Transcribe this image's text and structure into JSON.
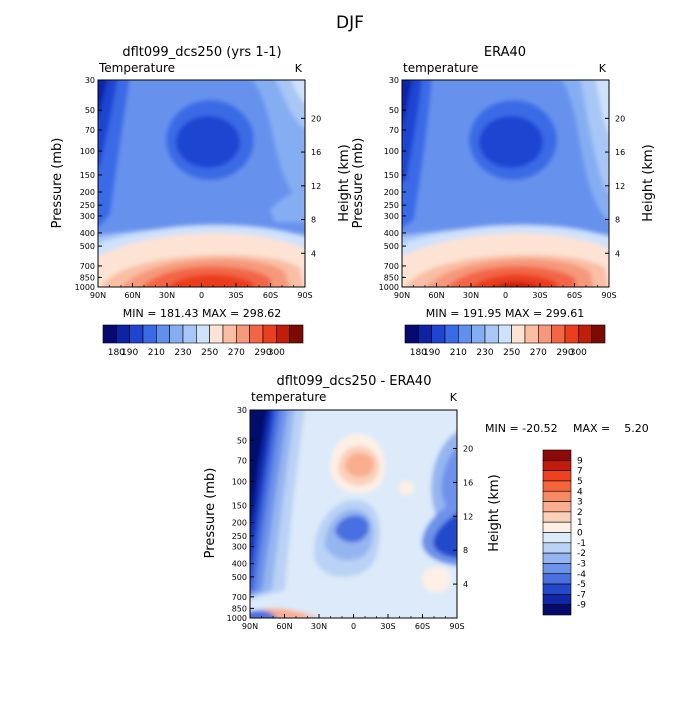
{
  "chart_data": [
    {
      "type": "heatmap",
      "title": "dflt099_dcs250 (yrs 1-1)",
      "field_label": "Temperature",
      "unit": "K",
      "xlabel": "",
      "ylabel": "Pressure (mb)",
      "right_label": "Height (km)",
      "xticks": [
        "90N",
        "60N",
        "30N",
        "0",
        "30S",
        "60S",
        "90S"
      ],
      "yticks": [
        "30",
        "50",
        "70",
        "100",
        "150",
        "200",
        "250",
        "300",
        "400",
        "500",
        "700",
        "850",
        "1000"
      ],
      "right_ticks": [
        "20",
        "16",
        "12",
        "8",
        "4"
      ],
      "stats": "MIN = 181.43   MAX = 298.62",
      "levels": [
        180,
        190,
        200,
        210,
        220,
        230,
        240,
        250,
        260,
        270,
        280,
        290,
        300
      ],
      "level_labels": [
        "180",
        "190",
        "210",
        "230",
        "250",
        "270",
        "290",
        "300"
      ]
    },
    {
      "type": "heatmap",
      "title": "ERA40",
      "field_label": "temperature",
      "unit": "K",
      "xlabel": "",
      "ylabel": "Pressure (mb)",
      "right_label": "Height (km)",
      "xticks": [
        "90N",
        "60N",
        "30N",
        "0",
        "30S",
        "60S",
        "90S"
      ],
      "yticks": [
        "30",
        "50",
        "70",
        "100",
        "150",
        "200",
        "250",
        "300",
        "400",
        "500",
        "700",
        "850",
        "1000"
      ],
      "right_ticks": [
        "20",
        "16",
        "12",
        "8",
        "4"
      ],
      "stats": "MIN = 191.95   MAX = 299.61",
      "levels": [
        180,
        190,
        200,
        210,
        220,
        230,
        240,
        250,
        260,
        270,
        280,
        290,
        300
      ],
      "level_labels": [
        "180",
        "190",
        "210",
        "230",
        "250",
        "270",
        "290",
        "300"
      ]
    },
    {
      "type": "heatmap",
      "title": "dflt099_dcs250 - ERA40",
      "field_label": "temperature",
      "unit": "K",
      "xlabel": "",
      "ylabel": "Pressure (mb)",
      "right_label": "Height (km)",
      "xticks": [
        "90N",
        "60N",
        "30N",
        "0",
        "30S",
        "60S",
        "90S"
      ],
      "yticks": [
        "30",
        "50",
        "70",
        "100",
        "150",
        "200",
        "250",
        "300",
        "400",
        "500",
        "700",
        "850",
        "1000"
      ],
      "right_ticks": [
        "20",
        "16",
        "12",
        "8",
        "4"
      ],
      "stats_min": "MIN = -20.52",
      "stats_max": "MAX =    5.20",
      "legend_labels": [
        "9",
        "7",
        "5",
        "4",
        "3",
        "2",
        "1",
        "0",
        "-1",
        "-2",
        "-3",
        "-4",
        "-5",
        "-7",
        "-9"
      ]
    }
  ],
  "figure": {
    "title": "DJF"
  },
  "palettes": {
    "absolute": [
      "#060a70",
      "#0e22a6",
      "#1f44d2",
      "#3b6ae6",
      "#6090ee",
      "#85aef2",
      "#a8c7f6",
      "#cfe2fb",
      "#fde3d4",
      "#f9bea4",
      "#f6987a",
      "#f26646",
      "#ea3e1c",
      "#c21d08",
      "#7c0b03"
    ],
    "difference": [
      "#8b0a0a",
      "#c11b0e",
      "#ef421c",
      "#f5643d",
      "#f78a63",
      "#f9ae90",
      "#fbd0bb",
      "#fdf0e6",
      "#dceaf9",
      "#b9d2f5",
      "#95b5f0",
      "#6d92ea",
      "#4a6fe1",
      "#2448cc",
      "#0f26a8",
      "#050b6b"
    ]
  }
}
